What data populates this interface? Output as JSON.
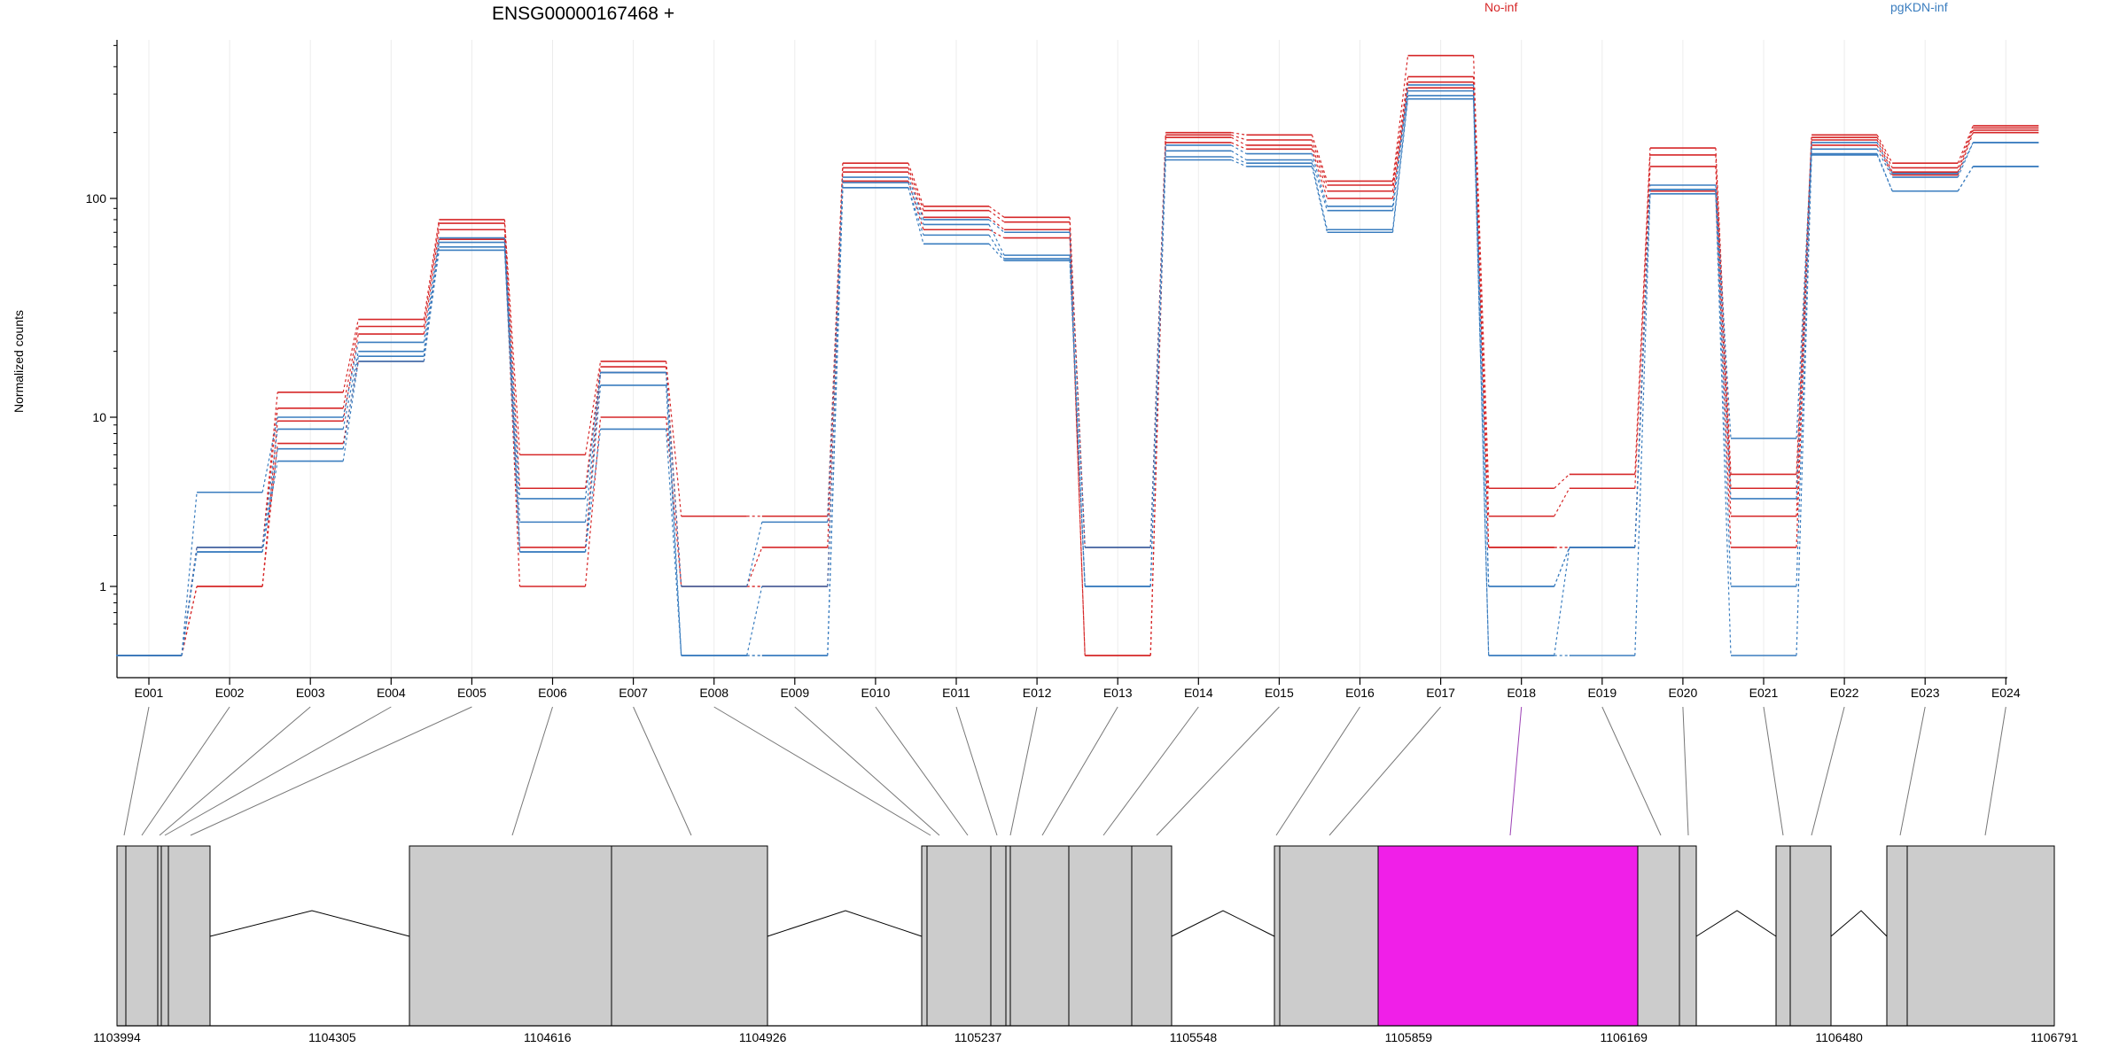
{
  "chart_data": {
    "type": "line",
    "title": "ENSG00000167468 +",
    "ylabel": "Normalized counts",
    "y_scale": "log",
    "ylim": [
      0.5,
      600
    ],
    "y_ticks": [
      {
        "value": 1,
        "label": "1"
      },
      {
        "value": 10,
        "label": "10"
      },
      {
        "value": 100,
        "label": "100"
      }
    ],
    "grid": "vertical, light",
    "legend": [
      {
        "name": "No-inf",
        "color": "#d62728"
      },
      {
        "name": "pgKDN-inf",
        "color": "#3a7dbf"
      }
    ],
    "categories": [
      "E001",
      "E002",
      "E003",
      "E004",
      "E005",
      "E006",
      "E007",
      "E008",
      "E009",
      "E010",
      "E011",
      "E012",
      "E013",
      "E014",
      "E015",
      "E016",
      "E017",
      "E018",
      "E019",
      "E020",
      "E021",
      "E022",
      "E023",
      "E024"
    ],
    "series": [
      {
        "group": "No-inf",
        "color": "#d62728",
        "values": [
          0.5,
          1.7,
          13,
          28,
          80,
          6,
          18,
          2.6,
          2.6,
          145,
          92,
          82,
          1.7,
          200,
          195,
          120,
          450,
          3.8,
          4.6,
          170,
          4.6,
          195,
          145,
          215
        ]
      },
      {
        "group": "No-inf",
        "color": "#d62728",
        "values": [
          0.5,
          1.7,
          11,
          26,
          77,
          3.8,
          17,
          1,
          1.7,
          138,
          88,
          78,
          1.7,
          195,
          185,
          115,
          360,
          2.6,
          3.8,
          158,
          3.8,
          190,
          138,
          210
        ]
      },
      {
        "group": "No-inf",
        "color": "#d62728",
        "values": [
          0.5,
          1,
          9.5,
          24,
          72,
          1.7,
          16,
          1,
          1,
          132,
          82,
          72,
          0.5,
          190,
          175,
          108,
          340,
          1.7,
          1.7,
          140,
          2.6,
          185,
          132,
          205
        ]
      },
      {
        "group": "No-inf",
        "color": "#d62728",
        "values": [
          0.5,
          1,
          7,
          18,
          65,
          1,
          10,
          1,
          1,
          120,
          72,
          66,
          0.5,
          180,
          168,
          100,
          320,
          1.7,
          1.7,
          108,
          1.7,
          175,
          128,
          200
        ]
      },
      {
        "group": "pgKDN-inf",
        "color": "#3a7dbf",
        "values": [
          0.5,
          3.6,
          10,
          22,
          66,
          3.3,
          16,
          1,
          2.4,
          125,
          80,
          70,
          1.7,
          175,
          160,
          92,
          330,
          1,
          1.7,
          115,
          7.5,
          180,
          130,
          180
        ]
      },
      {
        "group": "pgKDN-inf",
        "color": "#3a7dbf",
        "values": [
          0.5,
          1.7,
          8.5,
          20,
          63,
          2.4,
          16,
          0.5,
          1,
          118,
          76,
          55,
          1,
          165,
          150,
          88,
          310,
          1,
          1.7,
          110,
          3.3,
          168,
          125,
          180
        ]
      },
      {
        "group": "pgKDN-inf",
        "color": "#3a7dbf",
        "values": [
          0.5,
          1.6,
          6.5,
          19,
          60,
          1.6,
          14,
          0.5,
          0.5,
          112,
          68,
          53,
          1,
          155,
          145,
          72,
          295,
          0.5,
          1.7,
          110,
          1,
          160,
          108,
          140
        ]
      },
      {
        "group": "pgKDN-inf",
        "color": "#3a7dbf",
        "values": [
          0.5,
          1.6,
          5.5,
          18,
          58,
          1.6,
          8.5,
          0.5,
          0.5,
          112,
          62,
          52,
          1,
          150,
          140,
          70,
          285,
          0.5,
          0.5,
          105,
          0.5,
          158,
          108,
          140
        ]
      }
    ],
    "gene_model": {
      "coordinate_labels": [
        "1103994",
        "1104305",
        "1104616",
        "1104926",
        "1105237",
        "1105548",
        "1105859",
        "1106169",
        "1106480",
        "1106791"
      ],
      "coordinate_range": [
        1103994,
        1106791
      ],
      "highlighted_exon": "E018",
      "highlight_color": "#f01fe8",
      "exon_fill": "#cccccc"
    }
  }
}
